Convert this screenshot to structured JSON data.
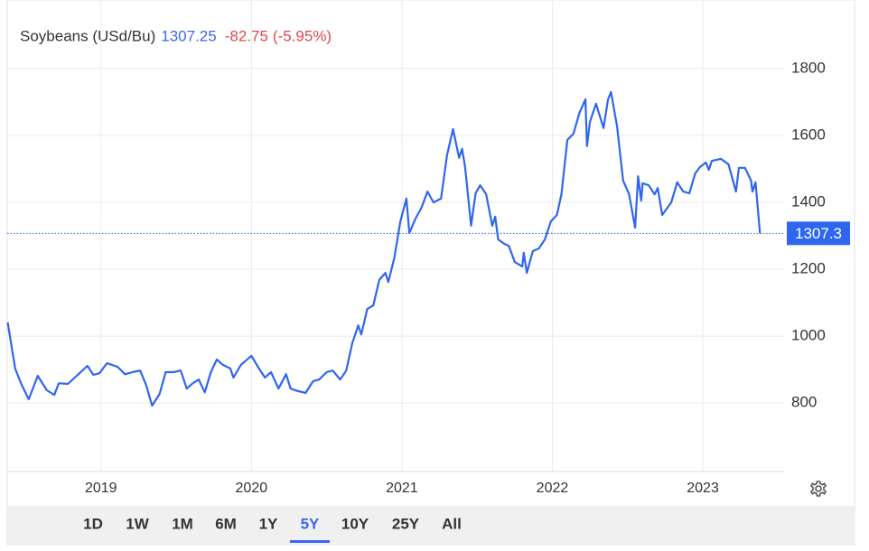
{
  "chart_data": {
    "type": "line",
    "title": "Soybeans (USd/Bu)",
    "last_value": 1307.25,
    "change": -82.75,
    "change_pct": {
      "value": -5.95,
      "label": "(-5.95%)"
    },
    "last_label": {
      "value": 1307.25,
      "label": "1307.3"
    },
    "xlim": [
      2018.377,
      2023.54
    ],
    "xticks": [
      2019,
      2020,
      2021,
      2022,
      2023
    ],
    "ylim": [
      595,
      1978
    ],
    "yticks": [
      800,
      1000,
      1200,
      1400,
      1600,
      1800
    ],
    "grid": true,
    "series": [
      {
        "name": "Soybeans (USd/Bu)",
        "color": "#2f66f0",
        "x": [
          2018.38,
          2018.43,
          2018.47,
          2018.52,
          2018.58,
          2018.64,
          2018.69,
          2018.72,
          2018.78,
          2018.85,
          2018.91,
          2018.95,
          2018.99,
          2019.04,
          2019.11,
          2019.16,
          2019.21,
          2019.26,
          2019.3,
          2019.34,
          2019.39,
          2019.43,
          2019.48,
          2019.53,
          2019.57,
          2019.61,
          2019.65,
          2019.69,
          2019.73,
          2019.77,
          2019.81,
          2019.86,
          2019.88,
          2019.93,
          2020.0,
          2020.05,
          2020.09,
          2020.13,
          2020.18,
          2020.23,
          2020.26,
          2020.29,
          2020.36,
          2020.41,
          2020.45,
          2020.5,
          2020.54,
          2020.59,
          2020.63,
          2020.67,
          2020.71,
          2020.73,
          2020.77,
          2020.81,
          2020.85,
          2020.89,
          2020.91,
          2020.95,
          2020.99,
          2021.03,
          2021.05,
          2021.09,
          2021.13,
          2021.17,
          2021.21,
          2021.26,
          2021.3,
          2021.34,
          2021.38,
          2021.4,
          2021.42,
          2021.46,
          2021.49,
          2021.52,
          2021.56,
          2021.6,
          2021.62,
          2021.64,
          2021.68,
          2021.71,
          2021.75,
          2021.8,
          2021.81,
          2021.83,
          2021.87,
          2021.91,
          2021.95,
          2021.99,
          2022.03,
          2022.06,
          2022.1,
          2022.14,
          2022.18,
          2022.22,
          2022.23,
          2022.25,
          2022.29,
          2022.34,
          2022.37,
          2022.39,
          2022.43,
          2022.47,
          2022.51,
          2022.55,
          2022.57,
          2022.59,
          2022.6,
          2022.64,
          2022.68,
          2022.7,
          2022.73,
          2022.79,
          2022.83,
          2022.87,
          2022.91,
          2022.95,
          2022.98,
          2023.02,
          2023.04,
          2023.06,
          2023.12,
          2023.17,
          2023.2,
          2023.22,
          2023.24,
          2023.28,
          2023.32,
          2023.33,
          2023.35,
          2023.38
        ],
        "values": [
          1041,
          903,
          857,
          811,
          881,
          838,
          824,
          859,
          857,
          886,
          911,
          884,
          889,
          919,
          908,
          886,
          892,
          897,
          854,
          792,
          827,
          892,
          892,
          897,
          843,
          859,
          870,
          832,
          892,
          930,
          914,
          903,
          876,
          914,
          941,
          903,
          876,
          892,
          843,
          886,
          843,
          838,
          830,
          865,
          870,
          892,
          897,
          870,
          897,
          978,
          1032,
          1005,
          1081,
          1092,
          1168,
          1189,
          1162,
          1235,
          1343,
          1411,
          1308,
          1351,
          1384,
          1432,
          1400,
          1411,
          1541,
          1619,
          1533,
          1560,
          1505,
          1330,
          1427,
          1451,
          1424,
          1330,
          1357,
          1289,
          1276,
          1270,
          1222,
          1208,
          1249,
          1189,
          1254,
          1262,
          1289,
          1343,
          1362,
          1424,
          1587,
          1605,
          1668,
          1708,
          1568,
          1641,
          1695,
          1622,
          1708,
          1730,
          1627,
          1465,
          1424,
          1324,
          1478,
          1405,
          1457,
          1451,
          1424,
          1443,
          1362,
          1400,
          1460,
          1432,
          1427,
          1487,
          1505,
          1519,
          1497,
          1524,
          1530,
          1514,
          1465,
          1432,
          1503,
          1503,
          1465,
          1432,
          1460,
          1307.25
        ]
      }
    ],
    "ranges": [
      "1D",
      "1W",
      "1M",
      "6M",
      "1Y",
      "5Y",
      "10Y",
      "25Y",
      "All"
    ],
    "active_range": "5Y"
  }
}
